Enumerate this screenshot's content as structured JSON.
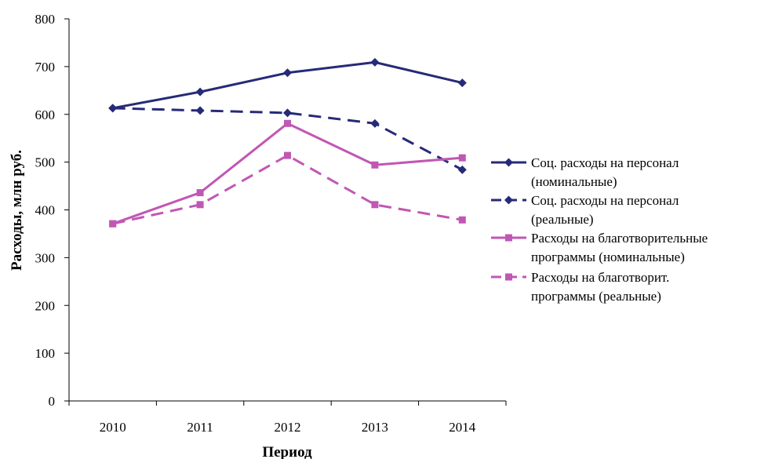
{
  "chart_data": {
    "type": "line",
    "title": "",
    "xlabel": "Период",
    "ylabel": "Расходы, млн руб.",
    "categories": [
      "2010",
      "2011",
      "2012",
      "2013",
      "2014"
    ],
    "ylim": [
      0,
      800
    ],
    "yticks": [
      0,
      100,
      200,
      300,
      400,
      500,
      600,
      700,
      800
    ],
    "grid": false,
    "legend_position": "right",
    "series": [
      {
        "name_lines": [
          "Соц. расходы на персонал",
          "(номинальные)"
        ],
        "values": [
          613,
          647,
          687,
          709,
          666
        ],
        "color": "#262a78",
        "dash": "solid",
        "marker": "diamond"
      },
      {
        "name_lines": [
          "Соц. расходы на персонал",
          "(реальные)"
        ],
        "values": [
          613,
          608,
          603,
          581,
          484
        ],
        "color": "#262a78",
        "dash": "dashed",
        "marker": "diamond"
      },
      {
        "name_lines": [
          "Расходы на благотворительные",
          "программы (номинальные)"
        ],
        "values": [
          371,
          436,
          581,
          494,
          509
        ],
        "color": "#c157b4",
        "dash": "solid",
        "marker": "square"
      },
      {
        "name_lines": [
          "Расходы на благотворит.",
          "программы (реальные)"
        ],
        "values": [
          371,
          411,
          514,
          411,
          379
        ],
        "color": "#c157b4",
        "dash": "dashed",
        "marker": "square"
      }
    ]
  }
}
